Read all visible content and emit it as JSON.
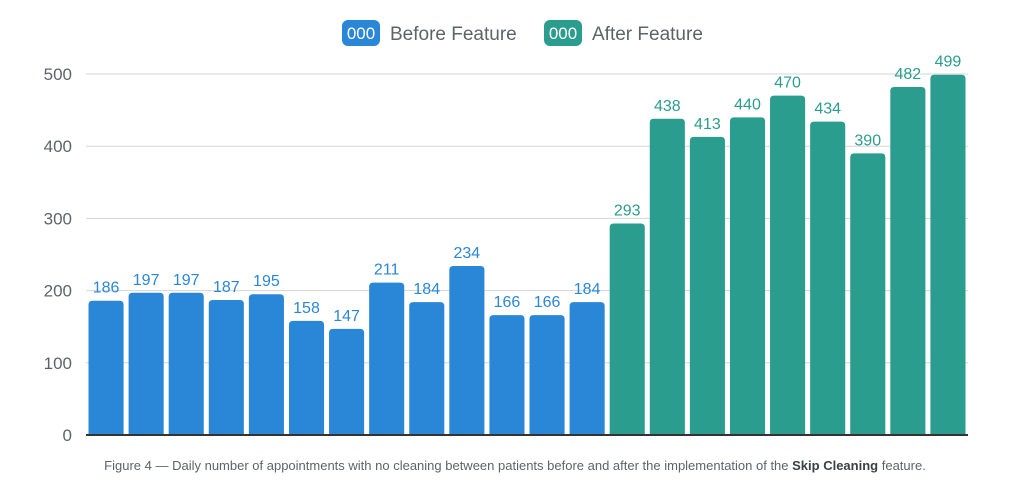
{
  "chart_data": {
    "type": "bar",
    "ylim": [
      0,
      500
    ],
    "yticks": [
      0,
      100,
      200,
      300,
      400,
      500
    ],
    "grid": true,
    "legend_position": "top-center",
    "legend": [
      {
        "swatch_text": "000",
        "label": "Before Feature",
        "color": "#2a87d8"
      },
      {
        "swatch_text": "000",
        "label": "After Feature",
        "color": "#2a9d8f"
      }
    ],
    "series": [
      {
        "name": "Before Feature",
        "color": "#2a87d8",
        "label_color": "#2a87d8",
        "values": [
          186,
          197,
          197,
          187,
          195,
          158,
          147,
          211,
          184,
          234,
          166,
          166,
          184
        ]
      },
      {
        "name": "After Feature",
        "color": "#2a9d8f",
        "label_color": "#2a9d8f",
        "values": [
          293,
          438,
          413,
          440,
          470,
          434,
          390,
          482,
          499
        ]
      }
    ]
  },
  "caption": {
    "prefix": "Figure 4 — Daily number of appointments with no cleaning between patients before and after the implementation of the ",
    "bold": "Skip Cleaning",
    "suffix": " feature."
  }
}
